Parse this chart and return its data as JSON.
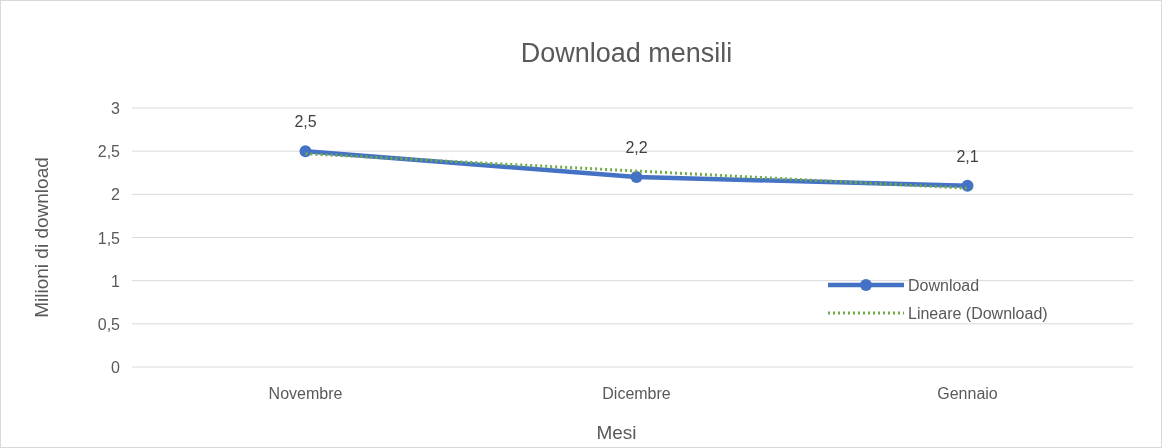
{
  "chart_data": {
    "type": "line",
    "title": "Download mensili",
    "xlabel": "Mesi",
    "ylabel": "Milioni di download",
    "categories": [
      "Novembre",
      "Dicembre",
      "Gennaio"
    ],
    "series": [
      {
        "name": "Download",
        "color": "#4472c4",
        "values": [
          2.5,
          2.2,
          2.1
        ],
        "value_labels": [
          "2,5",
          "2,2",
          "2,1"
        ],
        "marker": "circle",
        "line_style": "solid"
      },
      {
        "name": "Lineare (Download)",
        "type": "line",
        "color": "#70ad47",
        "values": [
          2.47,
          2.27,
          2.07
        ],
        "marker": "none",
        "line_style": "dotted"
      }
    ],
    "ylim": [
      0,
      3
    ],
    "yticks": [
      0,
      {
        "value": 0.5,
        "label": "0,5"
      },
      1,
      {
        "value": 1.5,
        "label": "1,5"
      },
      2,
      {
        "value": 2.5,
        "label": "2,5"
      },
      3
    ],
    "grid": "y",
    "legend": "right"
  }
}
